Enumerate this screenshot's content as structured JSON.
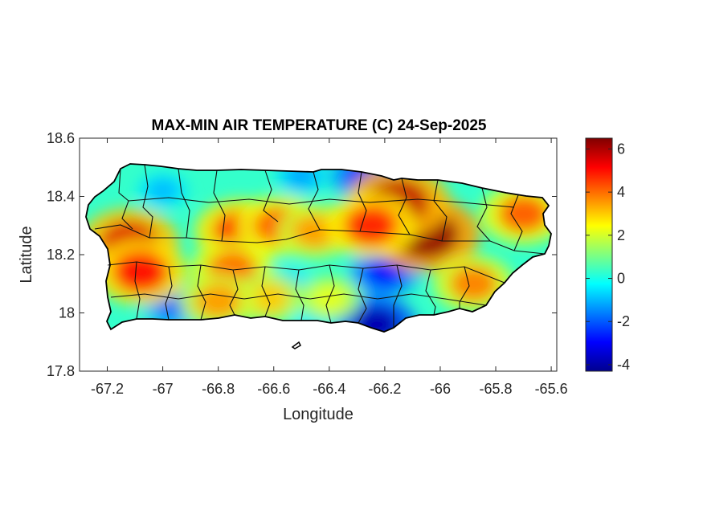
{
  "chart_data": {
    "type": "heatmap",
    "title": "MAX-MIN AIR TEMPERATURE (C) 24-Sep-2025",
    "xlabel": "Longitude",
    "ylabel": "Latitude",
    "xlim": [
      -67.3,
      -65.58
    ],
    "ylim": [
      17.8,
      18.6
    ],
    "x_ticks": [
      -67.2,
      -67,
      -66.8,
      -66.6,
      -66.4,
      -66.2,
      -66,
      -65.8,
      -65.6
    ],
    "x_tick_labels": [
      "-67.2",
      "-67",
      "-66.8",
      "-66.6",
      "-66.4",
      "-66.2",
      "-66",
      "-65.8",
      "-65.6"
    ],
    "y_ticks": [
      17.8,
      18,
      18.2,
      18.4,
      18.6
    ],
    "y_tick_labels": [
      "17.8",
      "18",
      "18.2",
      "18.4",
      "18.6"
    ],
    "colorbar": {
      "colormap": "jet",
      "limits": [
        -4.3,
        6.5
      ],
      "ticks": [
        -4,
        -2,
        0,
        2,
        4,
        6
      ],
      "tick_labels": [
        "-4",
        "-2",
        "0",
        "2",
        "4",
        "6"
      ]
    },
    "background_value": 0.3,
    "hotspots": [
      {
        "lon": -67.12,
        "lat": 18.24,
        "value": 5.5
      },
      {
        "lon": -67.08,
        "lat": 18.14,
        "value": 5.0
      },
      {
        "lon": -66.72,
        "lat": 18.28,
        "value": 4.8
      },
      {
        "lon": -66.58,
        "lat": 18.3,
        "value": 4.2
      },
      {
        "lon": -66.45,
        "lat": 18.28,
        "value": 3.5
      },
      {
        "lon": -66.75,
        "lat": 18.15,
        "value": 4.0
      },
      {
        "lon": -66.05,
        "lat": 18.27,
        "value": 6.3
      },
      {
        "lon": -66.15,
        "lat": 18.38,
        "value": 5.8
      },
      {
        "lon": -66.25,
        "lat": 18.3,
        "value": 4.8
      },
      {
        "lon": -65.7,
        "lat": 18.34,
        "value": 4.2
      },
      {
        "lon": -65.88,
        "lat": 18.1,
        "value": 3.8
      },
      {
        "lon": -66.62,
        "lat": 18.05,
        "value": 3.0
      },
      {
        "lon": -66.8,
        "lat": 18.04,
        "value": 3.5
      },
      {
        "lon": -66.4,
        "lat": 18.05,
        "value": 2.2
      }
    ],
    "coldspots": [
      {
        "lon": -66.5,
        "lat": 18.47,
        "value": -1.2
      },
      {
        "lon": -66.28,
        "lat": 18.47,
        "value": -2.5
      },
      {
        "lon": -66.2,
        "lat": 18.14,
        "value": -2.8
      },
      {
        "lon": -66.23,
        "lat": 17.96,
        "value": -3.8
      },
      {
        "lon": -66.97,
        "lat": 18.02,
        "value": -1.8
      },
      {
        "lon": -67.0,
        "lat": 18.42,
        "value": -1.0
      },
      {
        "lon": -66.55,
        "lat": 18.1,
        "value": -0.8
      },
      {
        "lon": -66.45,
        "lat": 17.98,
        "value": -0.5
      }
    ]
  }
}
